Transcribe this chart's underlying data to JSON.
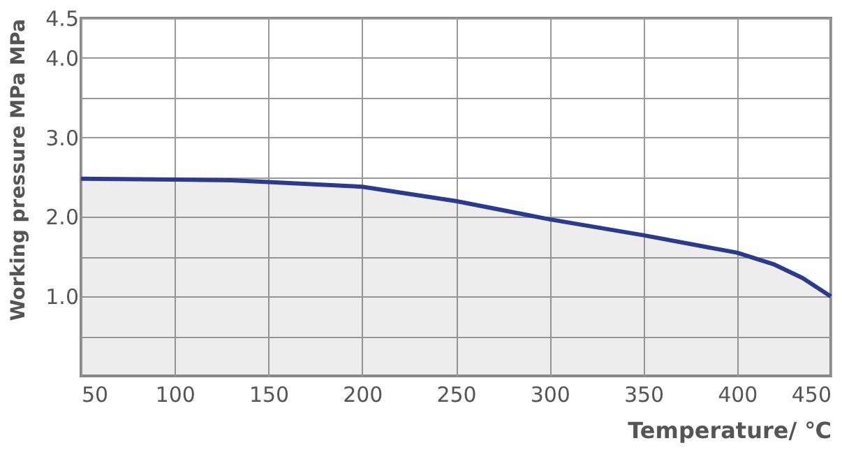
{
  "chart_data": {
    "type": "area",
    "xlabel": "Temperature/ ℃",
    "ylabel": "Working pressure MPa MPa",
    "x": [
      50,
      100,
      130,
      150,
      200,
      250,
      300,
      350,
      400,
      420,
      435,
      450
    ],
    "series": [
      {
        "color": "#2b3a8c",
        "values": [
          2.48,
          2.47,
          2.46,
          2.44,
          2.38,
          2.2,
          1.97,
          1.77,
          1.55,
          1.4,
          1.23,
          1.0
        ]
      }
    ],
    "xlim": [
      50,
      450
    ],
    "xticks": [
      50,
      100,
      150,
      200,
      250,
      300,
      350,
      400,
      450
    ],
    "ylim": [
      0,
      4.5
    ],
    "yticks": [
      {
        "value": 0.5,
        "label": null
      },
      {
        "value": 1,
        "label": "1.0"
      },
      {
        "value": 1.5,
        "label": null
      },
      {
        "value": 2,
        "label": "2.0"
      },
      {
        "value": 2.5,
        "label": null
      },
      {
        "value": 3,
        "label": "3.0"
      },
      {
        "value": 3.5,
        "label": null
      },
      {
        "value": 4,
        "label": "4.0"
      },
      {
        "value": 4.5,
        "label": "4.5"
      }
    ],
    "grid": true,
    "line_style": "solid",
    "marker": "none"
  }
}
